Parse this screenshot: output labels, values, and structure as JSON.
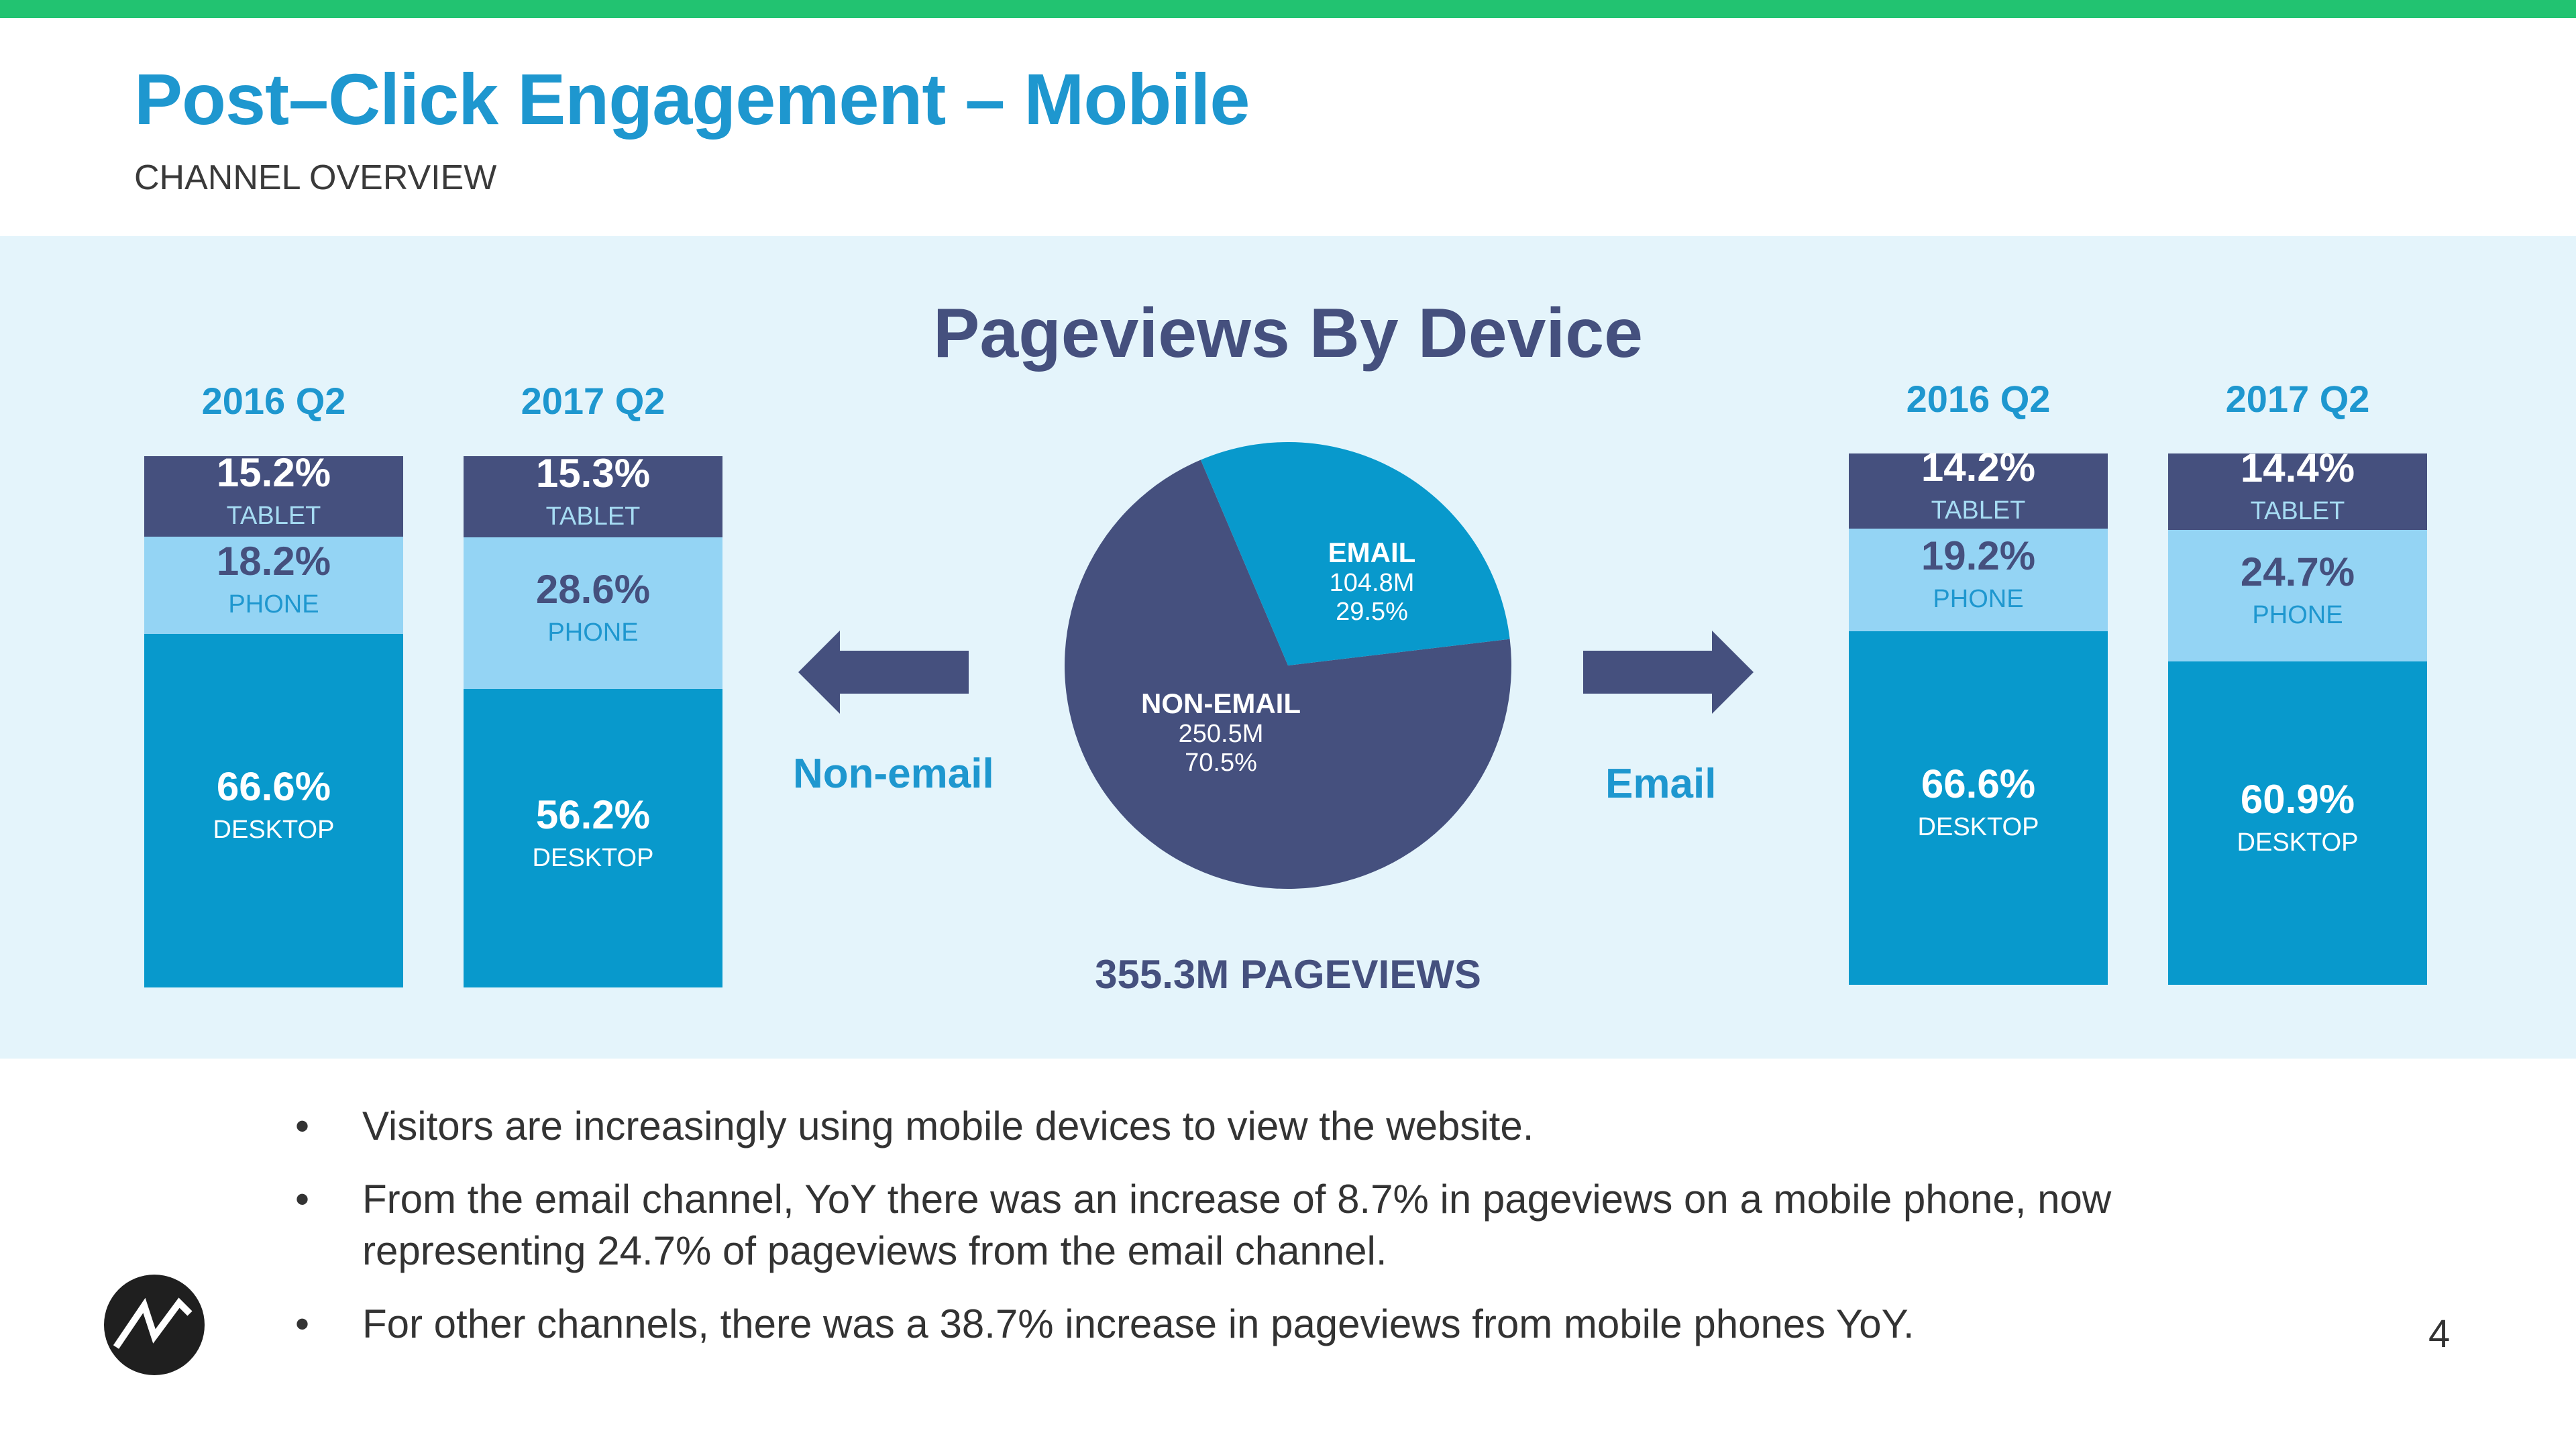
{
  "header": {
    "title": "Post–Click Engagement – Mobile",
    "subtitle": "CHANNEL OVERVIEW"
  },
  "chart_data": [
    {
      "type": "pie",
      "title": "Pageviews By Device",
      "total_label": "355.3M PAGEVIEWS",
      "slices": [
        {
          "name": "EMAIL",
          "value_text": "104.8M",
          "percent_text": "29.5%",
          "value": 104.8,
          "percent": 29.5,
          "color": "#0899cc"
        },
        {
          "name": "NON-EMAIL",
          "value_text": "250.5M",
          "percent_text": "70.5%",
          "value": 250.5,
          "percent": 70.5,
          "color": "#45507e"
        }
      ]
    },
    {
      "type": "bar",
      "stacked": true,
      "group_label": "Non-email",
      "categories": [
        "2016 Q2",
        "2017 Q2"
      ],
      "series": [
        {
          "name": "TABLET",
          "values": [
            15.2,
            15.3
          ],
          "labels": [
            "15.2%",
            "15.3%"
          ],
          "color": "#45507e"
        },
        {
          "name": "PHONE",
          "values": [
            18.2,
            28.6
          ],
          "labels": [
            "18.2%",
            "28.6%"
          ],
          "color": "#94d4f4"
        },
        {
          "name": "DESKTOP",
          "values": [
            66.6,
            56.2
          ],
          "labels": [
            "66.6%",
            "56.2%"
          ],
          "color": "#0899cc"
        }
      ]
    },
    {
      "type": "bar",
      "stacked": true,
      "group_label": "Email",
      "categories": [
        "2016 Q2",
        "2017 Q2"
      ],
      "series": [
        {
          "name": "TABLET",
          "values": [
            14.2,
            14.4
          ],
          "labels": [
            "14.2%",
            "14.4%"
          ],
          "color": "#45507e"
        },
        {
          "name": "PHONE",
          "values": [
            19.2,
            24.7
          ],
          "labels": [
            "19.2%",
            "24.7%"
          ],
          "color": "#94d4f4"
        },
        {
          "name": "DESKTOP",
          "values": [
            66.6,
            60.9
          ],
          "labels": [
            "66.6%",
            "60.9%"
          ],
          "color": "#0899cc"
        }
      ]
    }
  ],
  "bullets": [
    "Visitors are increasingly using mobile devices to view the website.",
    "From the email channel, YoY there was an increase of 8.7% in pageviews on a mobile phone, now representing 24.7% of pageviews from the email channel.",
    "For other channels, there was a 38.7% increase in pageviews from mobile phones YoY."
  ],
  "bullet_char": "•",
  "page_number": "4",
  "colors": {
    "accent_green": "#22c371",
    "title_blue": "#1e97cf",
    "navy": "#45507e",
    "light_blue": "#94d4f4",
    "mid_blue": "#0899cc",
    "panel_bg": "#e4f4fb"
  },
  "logo_icon": "company-logo-icon"
}
